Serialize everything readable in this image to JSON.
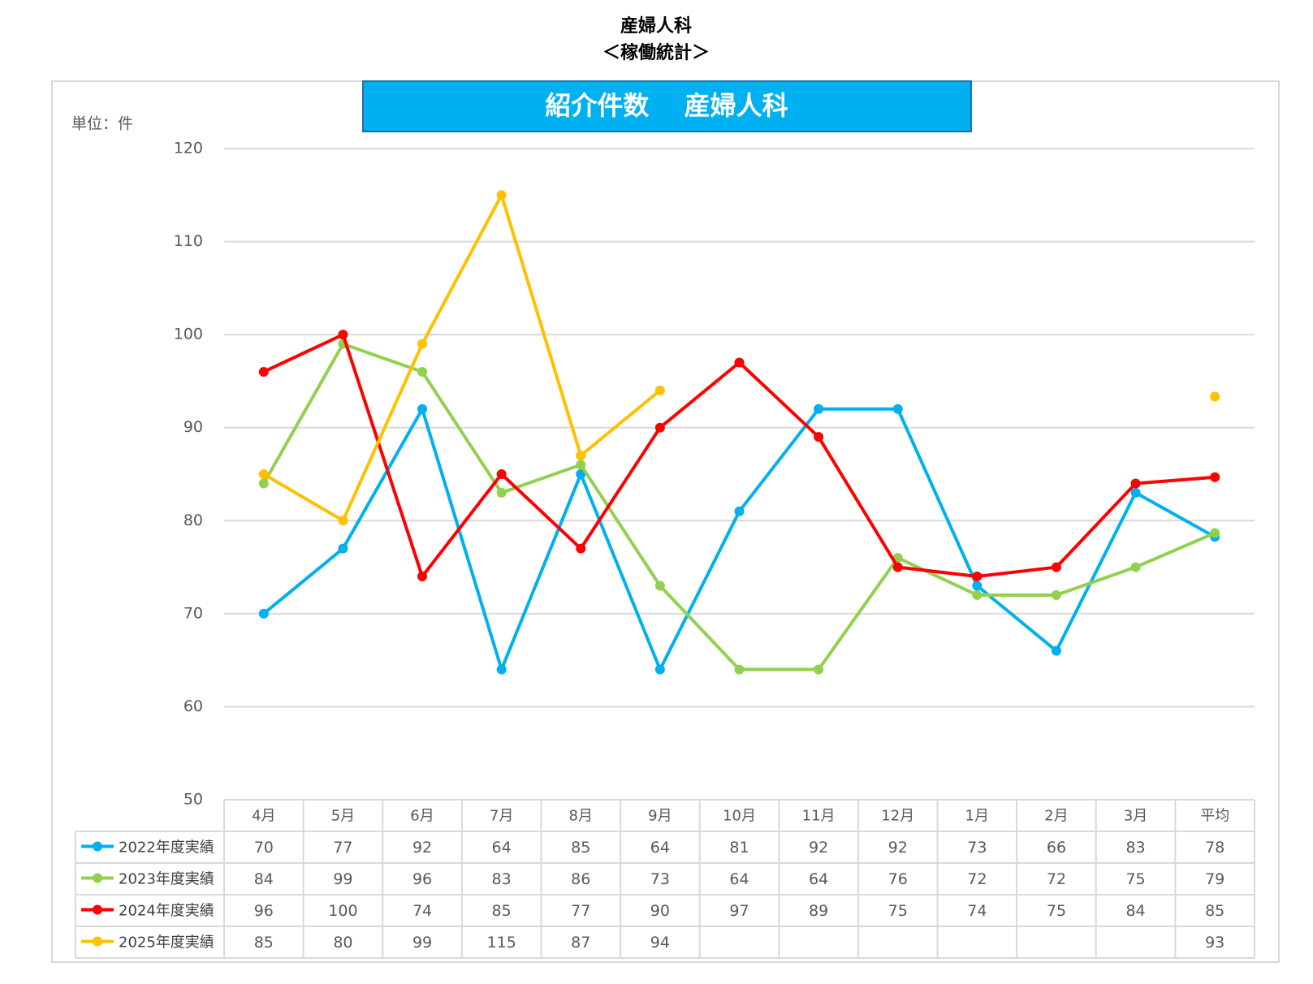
{
  "chart_data": {
    "type": "line",
    "title": "産婦人科",
    "subtitle": "＜稼働統計＞",
    "banner": "紹介件数　 産婦人科",
    "unit_label": "単位：件",
    "categories": [
      "4月",
      "5月",
      "6月",
      "7月",
      "8月",
      "9月",
      "10月",
      "11月",
      "12月",
      "1月",
      "2月",
      "3月",
      "平均"
    ],
    "series": [
      {
        "name": "2022年度実績",
        "color": "#00B0F0",
        "values": [
          70,
          77,
          92,
          64,
          85,
          64,
          81,
          92,
          92,
          73,
          66,
          83,
          78.25
        ],
        "value_labels": [
          "70",
          "77",
          "92",
          "64",
          "85",
          "64",
          "81",
          "92",
          "92",
          "73",
          "66",
          "83",
          "78"
        ]
      },
      {
        "name": "2023年度実績",
        "color": "#92D050",
        "values": [
          84,
          99,
          96,
          83,
          86,
          73,
          64,
          64,
          76,
          72,
          72,
          75,
          78.67
        ],
        "value_labels": [
          "84",
          "99",
          "96",
          "83",
          "86",
          "73",
          "64",
          "64",
          "76",
          "72",
          "72",
          "75",
          "79"
        ]
      },
      {
        "name": "2024年度実績",
        "color": "#FF0000",
        "values": [
          96,
          100,
          74,
          85,
          77,
          90,
          97,
          89,
          75,
          74,
          75,
          84,
          84.67
        ],
        "value_labels": [
          "96",
          "100",
          "74",
          "85",
          "77",
          "90",
          "97",
          "89",
          "75",
          "74",
          "75",
          "84",
          "85"
        ]
      },
      {
        "name": "2025年度実績",
        "color": "#FFC000",
        "values": [
          85,
          80,
          99,
          115,
          87,
          94,
          null,
          null,
          null,
          null,
          null,
          null,
          93.33
        ],
        "value_labels": [
          "85",
          "80",
          "99",
          "115",
          "87",
          "94",
          null,
          null,
          null,
          null,
          null,
          null,
          "93"
        ]
      }
    ],
    "ylim": [
      50,
      120
    ],
    "yticks": [
      50,
      60,
      70,
      80,
      90,
      100,
      110,
      120
    ],
    "grid": true
  }
}
